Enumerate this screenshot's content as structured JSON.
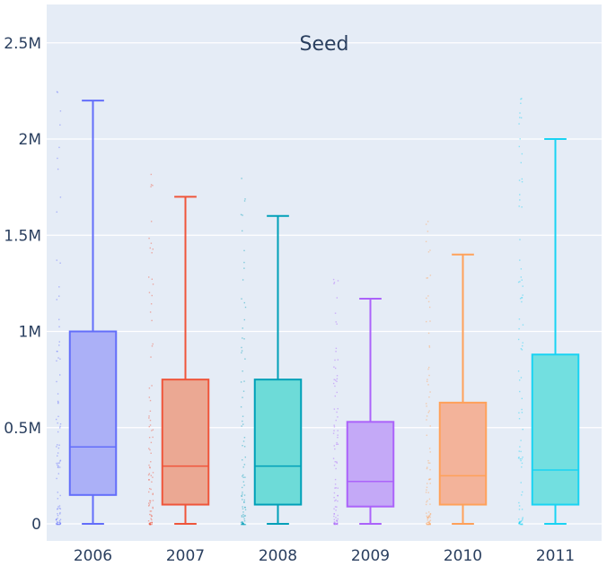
{
  "chart_data": {
    "type": "box",
    "title": "Seed",
    "xlabel": "",
    "ylabel": "",
    "categories": [
      "2006",
      "2007",
      "2008",
      "2009",
      "2010",
      "2011"
    ],
    "ylim": [
      -50000,
      2600000
    ],
    "yticks": [
      {
        "value": 0,
        "label": "0"
      },
      {
        "value": 500000,
        "label": "0.5M"
      },
      {
        "value": 1000000,
        "label": "1M"
      },
      {
        "value": 1500000,
        "label": "1.5M"
      },
      {
        "value": 2000000,
        "label": "2M"
      },
      {
        "value": 2500000,
        "label": "2.5M"
      }
    ],
    "grid": true,
    "series": [
      {
        "category": "2006",
        "min": 0,
        "q1": 150000,
        "median": 400000,
        "q3": 1000000,
        "max": 2200000,
        "color": "#636efa",
        "fill": "#abb0f7"
      },
      {
        "category": "2007",
        "min": 0,
        "q1": 100000,
        "median": 300000,
        "q3": 750000,
        "max": 1700000,
        "color": "#ef553b",
        "fill": "#eba893"
      },
      {
        "category": "2008",
        "min": 0,
        "q1": 100000,
        "median": 300000,
        "q3": 750000,
        "max": 1600000,
        "color": "#00a0b8",
        "fill": "#6ddbd8"
      },
      {
        "category": "2009",
        "min": 0,
        "q1": 90000,
        "median": 220000,
        "q3": 530000,
        "max": 1170000,
        "color": "#ab63fa",
        "fill": "#c4a9f7"
      },
      {
        "category": "2010",
        "min": 0,
        "q1": 100000,
        "median": 250000,
        "q3": 630000,
        "max": 1400000,
        "color": "#ffa15a",
        "fill": "#f3b39a"
      },
      {
        "category": "2011",
        "min": 0,
        "q1": 100000,
        "median": 280000,
        "q3": 880000,
        "max": 2000000,
        "color": "#19d3f3",
        "fill": "#72dfe0"
      }
    ]
  }
}
